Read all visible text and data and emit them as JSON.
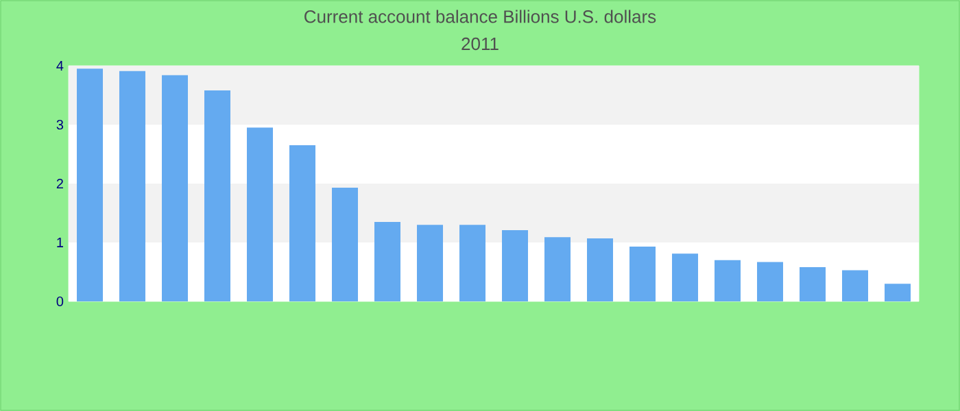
{
  "chart_data": {
    "type": "bar",
    "title": "Current account balance Billions U.S. dollars",
    "subtitle": "2011",
    "categories": [
      null,
      null,
      null,
      null,
      null,
      null,
      null,
      null,
      null,
      null,
      null,
      null,
      null,
      null,
      null,
      null,
      null,
      null,
      null,
      null
    ],
    "values": [
      3.95,
      3.91,
      3.84,
      3.58,
      2.95,
      2.65,
      1.93,
      1.35,
      1.3,
      1.3,
      1.21,
      1.09,
      1.07,
      0.93,
      0.81,
      0.7,
      0.67,
      0.58,
      0.53,
      0.3
    ],
    "color": "#64aaf0",
    "ylim": [
      0,
      4
    ],
    "yticks": [
      0,
      1,
      2,
      3,
      4
    ],
    "bands": [
      {
        "axis": "y",
        "from": 1,
        "to": 2,
        "color": "#f2f2f2"
      },
      {
        "axis": "y",
        "from": 3,
        "to": 4,
        "color": "#f2f2f2"
      }
    ]
  }
}
